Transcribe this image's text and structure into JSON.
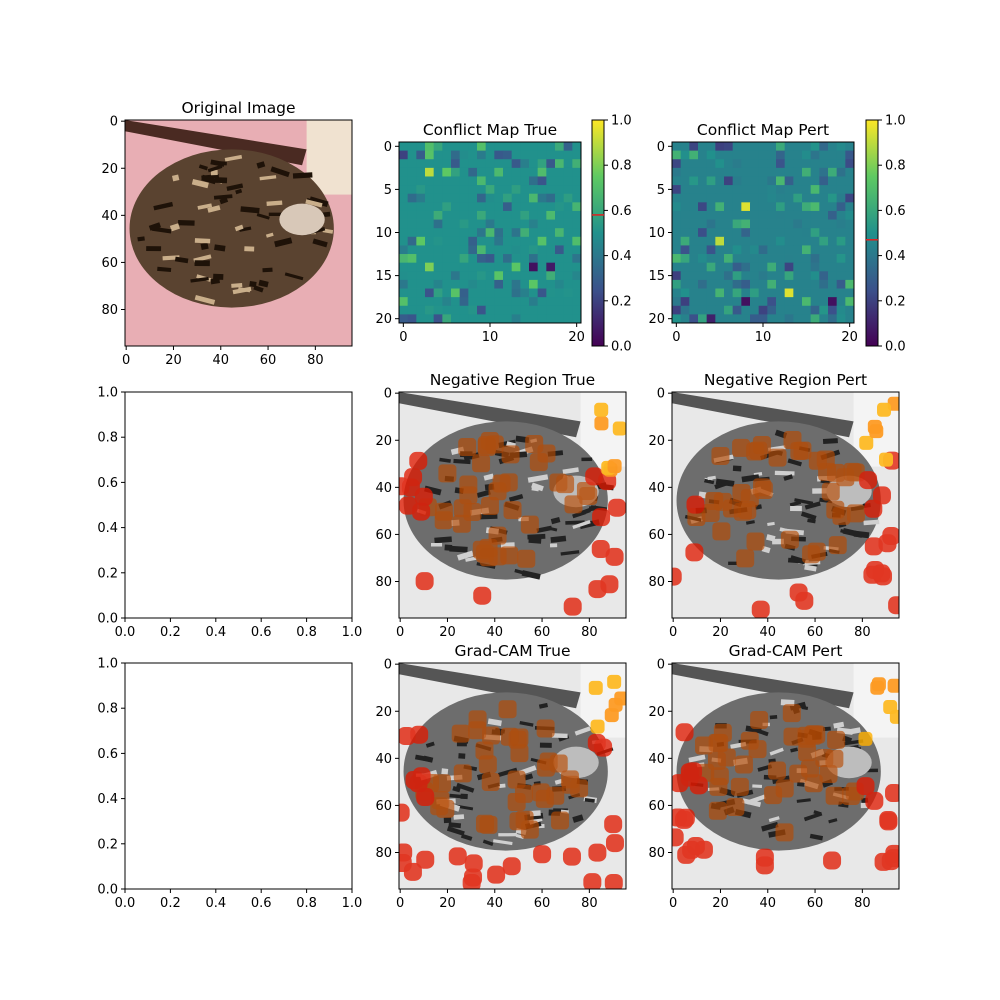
{
  "figure": {
    "panels": [
      {
        "id": "orig",
        "title": "Original Image",
        "kind": "image",
        "xticks": [
          "0",
          "20",
          "40",
          "60",
          "80"
        ],
        "yticks": [
          "0",
          "20",
          "40",
          "60",
          "80"
        ],
        "extent": [
          -0.5,
          95.5,
          95.5,
          -0.5
        ]
      },
      {
        "id": "cmt",
        "title": "Conflict Map True",
        "kind": "heatmap",
        "xticks": [
          "0",
          "10",
          "20"
        ],
        "yticks": [
          "0",
          "5",
          "10",
          "15",
          "20"
        ],
        "extent": [
          -0.5,
          20.5,
          20.5,
          -0.5
        ]
      },
      {
        "id": "cmp",
        "title": "Conflict Map Pert",
        "kind": "heatmap",
        "xticks": [
          "0",
          "10",
          "20"
        ],
        "yticks": [
          "0",
          "5",
          "10",
          "15",
          "20"
        ],
        "extent": [
          -0.5,
          20.5,
          20.5,
          -0.5
        ]
      },
      {
        "id": "empty1",
        "title": "",
        "kind": "empty",
        "xticks": [
          "0.0",
          "0.2",
          "0.4",
          "0.6",
          "0.8",
          "1.0"
        ],
        "yticks": [
          "0.0",
          "0.2",
          "0.4",
          "0.6",
          "0.8",
          "1.0"
        ]
      },
      {
        "id": "nrt",
        "title": "Negative Region True",
        "kind": "overlay",
        "xticks": [
          "0",
          "20",
          "40",
          "60",
          "80"
        ],
        "yticks": [
          "0",
          "20",
          "40",
          "60",
          "80"
        ],
        "extent": [
          -0.5,
          95.5,
          95.5,
          -0.5
        ]
      },
      {
        "id": "nrp",
        "title": "Negative Region Pert",
        "kind": "overlay",
        "xticks": [
          "0",
          "20",
          "40",
          "60",
          "80"
        ],
        "yticks": [
          "0",
          "20",
          "40",
          "60",
          "80"
        ],
        "extent": [
          -0.5,
          95.5,
          95.5,
          -0.5
        ]
      },
      {
        "id": "empty2",
        "title": "",
        "kind": "empty",
        "xticks": [
          "0.0",
          "0.2",
          "0.4",
          "0.6",
          "0.8",
          "1.0"
        ],
        "yticks": [
          "0.0",
          "0.2",
          "0.4",
          "0.6",
          "0.8",
          "1.0"
        ]
      },
      {
        "id": "gct",
        "title": "Grad-CAM True",
        "kind": "overlay",
        "xticks": [
          "0",
          "20",
          "40",
          "60",
          "80"
        ],
        "yticks": [
          "0",
          "20",
          "40",
          "60",
          "80"
        ],
        "extent": [
          -0.5,
          95.5,
          95.5,
          -0.5
        ]
      },
      {
        "id": "gcp",
        "title": "Grad-CAM Pert",
        "kind": "overlay",
        "xticks": [
          "0",
          "20",
          "40",
          "60",
          "80"
        ],
        "yticks": [
          "0",
          "20",
          "40",
          "60",
          "80"
        ],
        "extent": [
          -0.5,
          95.5,
          95.5,
          -0.5
        ]
      }
    ],
    "colorbars": [
      {
        "for": "cmt",
        "ticks": [
          "0.0",
          "0.2",
          "0.4",
          "0.6",
          "0.8",
          "1.0"
        ],
        "marker": 0.58
      },
      {
        "for": "cmp",
        "ticks": [
          "0.0",
          "0.2",
          "0.4",
          "0.6",
          "0.8",
          "1.0"
        ],
        "marker": 0.47
      }
    ]
  },
  "chart_data": [
    {
      "type": "image",
      "title": "Original Image",
      "xlim": [
        -0.5,
        95.5
      ],
      "ylim": [
        95.5,
        -0.5
      ]
    },
    {
      "type": "heatmap",
      "title": "Conflict Map True",
      "grid": "21x21",
      "dominant_value": 0.5,
      "outliers": [
        {
          "row": 3,
          "col": 3,
          "value": 0.9
        },
        {
          "row": 14,
          "col": 3,
          "value": 0.8
        },
        {
          "row": 14,
          "col": 15,
          "value": 0.05
        },
        {
          "row": 14,
          "col": 17,
          "value": 0.08
        },
        {
          "row": 1,
          "col": 0,
          "value": 0.2
        }
      ],
      "clim": [
        0,
        1
      ],
      "colorbar_marker": 0.58
    },
    {
      "type": "heatmap",
      "title": "Conflict Map Pert",
      "grid": "21x21",
      "dominant_value": 0.45,
      "outliers": [
        {
          "row": 7,
          "col": 8,
          "value": 0.95
        },
        {
          "row": 11,
          "col": 5,
          "value": 0.9
        },
        {
          "row": 17,
          "col": 13,
          "value": 0.95
        },
        {
          "row": 18,
          "col": 8,
          "value": 0.05
        },
        {
          "row": 18,
          "col": 18,
          "value": 0.05
        },
        {
          "row": 20,
          "col": 4,
          "value": 0.1
        }
      ],
      "clim": [
        0,
        1
      ],
      "colorbar_marker": 0.47
    },
    {
      "type": "empty",
      "xlim": [
        0,
        1
      ],
      "ylim": [
        0,
        1
      ]
    },
    {
      "type": "image",
      "title": "Negative Region True",
      "xlim": [
        -0.5,
        95.5
      ],
      "ylim": [
        95.5,
        -0.5
      ]
    },
    {
      "type": "image",
      "title": "Negative Region Pert",
      "xlim": [
        -0.5,
        95.5
      ],
      "ylim": [
        95.5,
        -0.5
      ]
    },
    {
      "type": "empty",
      "xlim": [
        0,
        1
      ],
      "ylim": [
        0,
        1
      ]
    },
    {
      "type": "image",
      "title": "Grad-CAM True",
      "xlim": [
        -0.5,
        95.5
      ],
      "ylim": [
        95.5,
        -0.5
      ]
    },
    {
      "type": "image",
      "title": "Grad-CAM Pert",
      "xlim": [
        -0.5,
        95.5
      ],
      "ylim": [
        95.5,
        -0.5
      ]
    }
  ]
}
